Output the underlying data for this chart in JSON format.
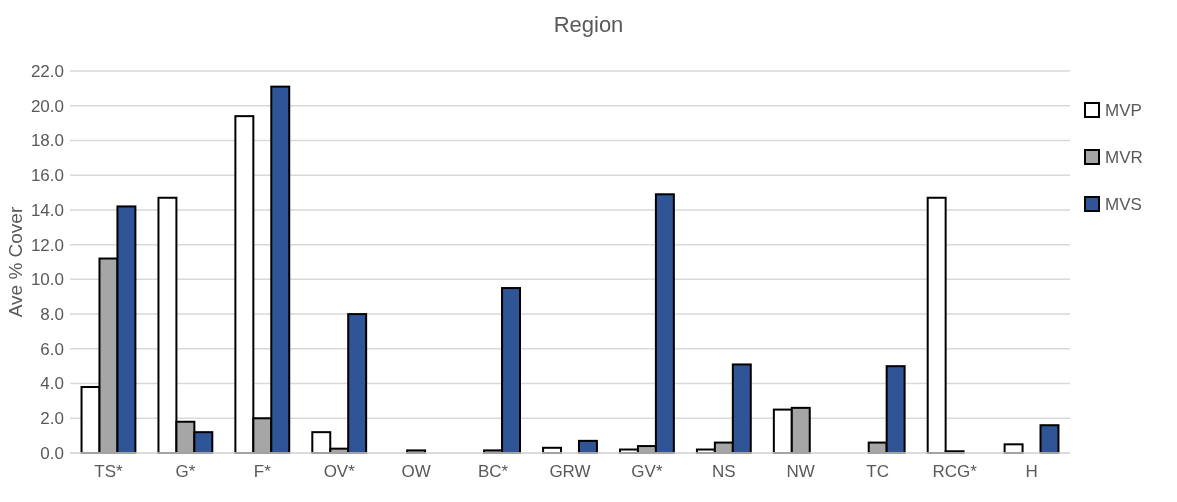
{
  "chart_data": {
    "type": "bar",
    "title": "Region",
    "ylabel": "Ave % Cover",
    "categories": [
      "TS*",
      "G*",
      "F*",
      "OV*",
      "OW",
      "BC*",
      "GRW",
      "GV*",
      "NS",
      "NW",
      "TC",
      "RCG*",
      "H"
    ],
    "series": [
      {
        "name": "MVP",
        "color": "#ffffff",
        "values": [
          3.8,
          14.7,
          19.4,
          1.2,
          null,
          null,
          0.3,
          0.2,
          0.2,
          2.5,
          null,
          14.7,
          0.5
        ]
      },
      {
        "name": "MVR",
        "color": "#a6a6a6",
        "values": [
          11.2,
          1.8,
          2.0,
          0.25,
          0.15,
          0.15,
          null,
          0.4,
          0.6,
          2.6,
          0.6,
          0.1,
          null
        ]
      },
      {
        "name": "MVS",
        "color": "#2f5597",
        "values": [
          14.2,
          1.2,
          21.1,
          8.0,
          null,
          9.5,
          0.7,
          14.9,
          5.1,
          null,
          5.0,
          null,
          1.6
        ]
      }
    ],
    "ylim": [
      0,
      22
    ],
    "yticks": [
      {
        "value": 0,
        "label": "0.0"
      },
      {
        "value": 2,
        "label": "2.0"
      },
      {
        "value": 4,
        "label": "4.0"
      },
      {
        "value": 6,
        "label": "6.0"
      },
      {
        "value": 8,
        "label": "8.0"
      },
      {
        "value": 10,
        "label": "10.0"
      },
      {
        "value": 12,
        "label": "12.0"
      },
      {
        "value": 14,
        "label": "14.0"
      },
      {
        "value": 16,
        "label": "16.0"
      },
      {
        "value": 18,
        "label": "18.0"
      },
      {
        "value": 20,
        "label": "20.0"
      },
      {
        "value": 22,
        "label": "22.0"
      }
    ],
    "grid": "y",
    "legend": "right"
  }
}
